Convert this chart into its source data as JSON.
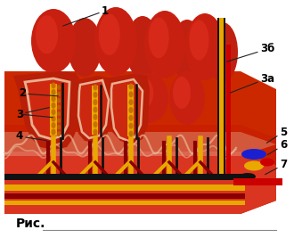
{
  "bg_color": "#ffffff",
  "footer_text": "Рис.",
  "label_fontsize": 8.5,
  "footer_fontsize": 10,
  "villi_outer": "#c0281a",
  "villi_mid": "#d43520",
  "villi_inner": "#e04030",
  "epithelium": "#f0b8a0",
  "base_red": "#c02010",
  "submucosa_red": "#d03520",
  "lymph_yellow": "#e8a800",
  "nerve_black": "#111111",
  "blood_red": "#aa0000",
  "blue_vein": "#1a2ad0",
  "label_color": "#000000",
  "line_color": "#222222"
}
